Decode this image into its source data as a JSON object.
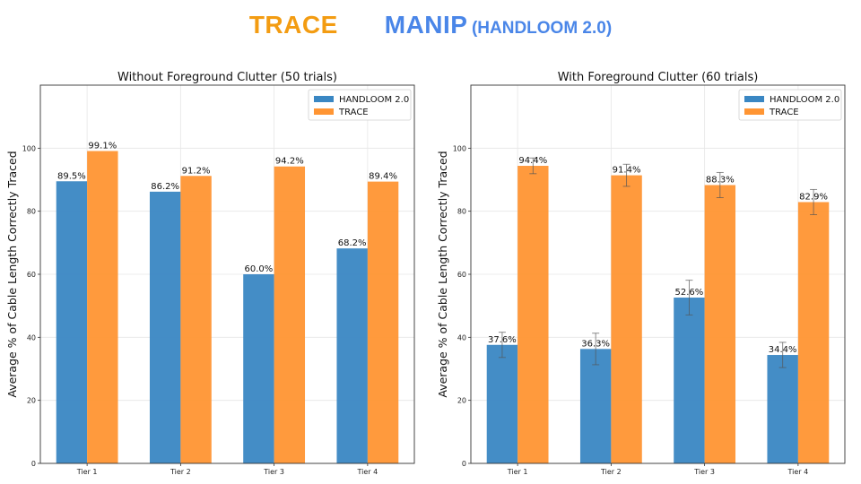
{
  "header": {
    "part1": "TRACE",
    "part2": "MANIP",
    "part3": "(HANDLOOM 2.0)",
    "color1": "#f39c12",
    "color2": "#4a86e8"
  },
  "chart_data": [
    {
      "type": "bar",
      "title": "Without Foreground Clutter (50 trials)",
      "xlabel": "",
      "ylabel": "Average % of Cable Length Correctly Traced",
      "ylim": [
        0,
        120
      ],
      "yticks": [
        0,
        20,
        40,
        60,
        80,
        100
      ],
      "categories": [
        "Tier 1",
        "Tier 2",
        "Tier 3",
        "Tier 4"
      ],
      "grid": true,
      "legend": "top-right",
      "series": [
        {
          "name": "HANDLOOM 2.0",
          "color": "#3a87c3",
          "values": [
            89.5,
            86.2,
            60.0,
            68.2
          ],
          "labels": [
            "89.5%",
            "86.2%",
            "60.0%",
            "68.2%"
          ],
          "errors": null
        },
        {
          "name": "TRACE",
          "color": "#ff9533",
          "values": [
            99.1,
            91.2,
            94.2,
            89.4
          ],
          "labels": [
            "99.1%",
            "91.2%",
            "94.2%",
            "89.4%"
          ],
          "errors": null
        }
      ]
    },
    {
      "type": "bar",
      "title": "With Foreground Clutter (60 trials)",
      "xlabel": "",
      "ylabel": "Average % of Cable Length Correctly Traced",
      "ylim": [
        0,
        120
      ],
      "yticks": [
        0,
        20,
        40,
        60,
        80,
        100
      ],
      "categories": [
        "Tier 1",
        "Tier 2",
        "Tier 3",
        "Tier 4"
      ],
      "grid": true,
      "legend": "top-right",
      "series": [
        {
          "name": "HANDLOOM 2.0",
          "color": "#3a87c3",
          "values": [
            37.6,
            36.3,
            52.6,
            34.4
          ],
          "labels": [
            "37.6%",
            "36.3%",
            "52.6%",
            "34.4%"
          ],
          "errors": [
            4,
            5,
            5.5,
            4
          ]
        },
        {
          "name": "TRACE",
          "color": "#ff9533",
          "values": [
            94.4,
            91.4,
            88.3,
            82.9
          ],
          "labels": [
            "94.4%",
            "91.4%",
            "88.3%",
            "82.9%"
          ],
          "errors": [
            2.5,
            3.5,
            4,
            4
          ]
        }
      ]
    }
  ]
}
